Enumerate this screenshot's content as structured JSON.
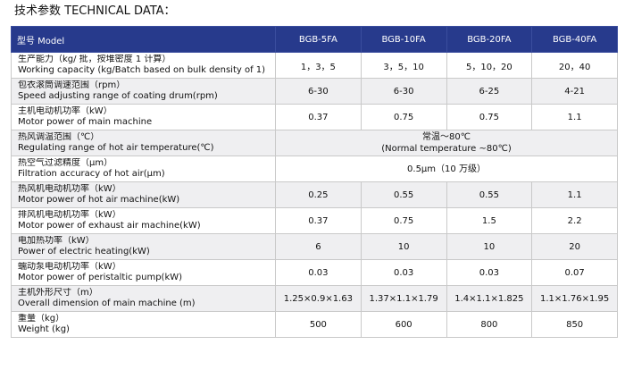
{
  "title": "技术参数  TECHNICAL DATA：",
  "header": {
    "param_label": "型号 Model",
    "models": [
      "BGB-5FA",
      "BGB-10FA",
      "BGB-20FA",
      "BGB-40FA"
    ]
  },
  "rows": [
    {
      "zh": "生产能力（kg/ 批，按堆密度 1 计算）",
      "en": "Working capacity (kg/Batch based on bulk density of 1)",
      "values": [
        "1，3，5",
        "3，5，10",
        "5，10，20",
        "20，40"
      ]
    },
    {
      "zh": "包衣滚筒调速范围（rpm）",
      "en": "Speed adjusting range of coating drum(rpm)",
      "values": [
        "6-30",
        "6-30",
        "6-25",
        "4-21"
      ]
    },
    {
      "zh": "主机电动机功率（kW）",
      "en": "Motor power of main machine",
      "values": [
        "0.37",
        "0.75",
        "0.75",
        "1.1"
      ]
    },
    {
      "zh": "热风调温范围（℃）",
      "en": "Regulating range of hot air temperature(℃)",
      "merged": [
        "常温～80℃",
        "(Normal temperature ~80℃)"
      ]
    },
    {
      "zh": "热空气过滤精度（μm）",
      "en": "Filtration accuracy of hot air(μm)",
      "merged": [
        "0.5μm（10 万级）"
      ]
    },
    {
      "zh": "热风机电动机功率（kW）",
      "en": "Motor power of hot air machine(kW)",
      "values": [
        "0.25",
        "0.55",
        "0.55",
        "1.1"
      ]
    },
    {
      "zh": "排风机电动机功率（kW）",
      "en": "Motor power of exhaust air machine(kW)",
      "values": [
        "0.37",
        "0.75",
        "1.5",
        "2.2"
      ]
    },
    {
      "zh": "电加热功率（kW）",
      "en": "Power of electric heating(kW)",
      "values": [
        "6",
        "10",
        "10",
        "20"
      ]
    },
    {
      "zh": "蠕动泵电动机功率（kW）",
      "en": "Motor power of peristaltic pump(kW)",
      "values": [
        "0.03",
        "0.03",
        "0.03",
        "0.07"
      ]
    },
    {
      "zh": "主机外形尺寸（m）",
      "en": "Overall dimension of main machine (m)",
      "values": [
        "1.25×0.9×1.63",
        "1.37×1.1×1.79",
        "1.4×1.1×1.825",
        "1.1×1.76×1.95"
      ]
    },
    {
      "zh": "重量（kg）",
      "en": "Weight (kg)",
      "values": [
        "500",
        "600",
        "800",
        "850"
      ]
    }
  ]
}
